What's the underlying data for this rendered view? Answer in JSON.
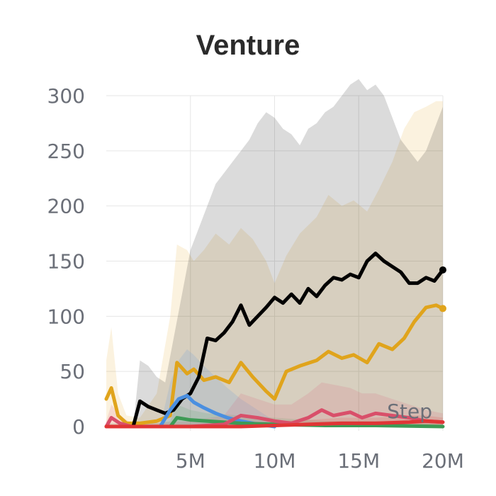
{
  "chart_data": {
    "type": "line",
    "title": "Venture",
    "xlabel": "Step",
    "ylabel": "",
    "xlim": [
      0,
      20000000
    ],
    "ylim": [
      0,
      300
    ],
    "x_ticks": [
      5000000,
      10000000,
      15000000,
      20000000
    ],
    "x_tick_labels": [
      "5M",
      "10M",
      "15M",
      "20M"
    ],
    "y_ticks": [
      0,
      50,
      100,
      150,
      200,
      250,
      300
    ],
    "y_tick_labels": [
      "0",
      "50",
      "100",
      "150",
      "200",
      "250",
      "300"
    ],
    "grid": true,
    "series": [
      {
        "color": "#e0a41c",
        "end_marker": true,
        "x": [
          0,
          300000,
          700000,
          1200000,
          2000000,
          3000000,
          3800000,
          4200000,
          4800000,
          5200000,
          5800000,
          6500000,
          7300000,
          8000000,
          8700000,
          9500000,
          10000000,
          10700000,
          11500000,
          12500000,
          13200000,
          14000000,
          14700000,
          15500000,
          16200000,
          17000000,
          17700000,
          18300000,
          19000000,
          19600000,
          20000000
        ],
        "values": [
          25,
          35,
          10,
          3,
          3,
          5,
          10,
          58,
          48,
          52,
          42,
          45,
          40,
          58,
          45,
          32,
          25,
          50,
          55,
          60,
          68,
          62,
          65,
          58,
          75,
          70,
          80,
          95,
          108,
          110,
          107
        ],
        "band_upper": [
          60,
          90,
          30,
          10,
          8,
          30,
          100,
          165,
          160,
          150,
          160,
          175,
          165,
          180,
          170,
          150,
          130,
          155,
          175,
          190,
          210,
          200,
          205,
          195,
          215,
          240,
          270,
          285,
          290,
          295,
          295
        ],
        "band_lower": [
          0,
          0,
          0,
          0,
          0,
          0,
          0,
          0,
          0,
          0,
          0,
          0,
          0,
          0,
          0,
          0,
          0,
          0,
          0,
          0,
          0,
          0,
          0,
          0,
          0,
          0,
          0,
          0,
          0,
          0,
          0
        ]
      },
      {
        "color": "#000000",
        "end_marker": true,
        "x": [
          1600000,
          2000000,
          2500000,
          3000000,
          3500000,
          4000000,
          4500000,
          5000000,
          5500000,
          6000000,
          6500000,
          7000000,
          7500000,
          8000000,
          8500000,
          9000000,
          9500000,
          10000000,
          10500000,
          11000000,
          11500000,
          12000000,
          12500000,
          13000000,
          13500000,
          14000000,
          14500000,
          15000000,
          15500000,
          16000000,
          16500000,
          17000000,
          17500000,
          18000000,
          18500000,
          19000000,
          19500000,
          20000000
        ],
        "values": [
          0,
          23,
          18,
          15,
          12,
          15,
          25,
          30,
          45,
          80,
          78,
          85,
          95,
          110,
          92,
          100,
          108,
          117,
          112,
          120,
          112,
          125,
          118,
          128,
          135,
          133,
          138,
          135,
          150,
          157,
          150,
          145,
          140,
          130,
          130,
          135,
          132,
          142
        ],
        "band_upper": [
          0,
          60,
          55,
          45,
          40,
          80,
          120,
          160,
          180,
          200,
          220,
          230,
          240,
          250,
          260,
          275,
          285,
          280,
          270,
          265,
          255,
          270,
          275,
          285,
          290,
          300,
          310,
          315,
          305,
          310,
          300,
          280,
          260,
          250,
          240,
          250,
          270,
          290
        ],
        "band_lower": [
          0,
          0,
          0,
          0,
          0,
          0,
          0,
          0,
          0,
          0,
          0,
          0,
          0,
          0,
          0,
          0,
          0,
          0,
          0,
          0,
          0,
          0,
          0,
          0,
          0,
          0,
          0,
          0,
          0,
          0,
          0,
          0,
          0,
          0,
          0,
          0,
          0,
          0
        ]
      },
      {
        "color": "#4a8fe0",
        "end_marker": false,
        "x": [
          3200000,
          3800000,
          4300000,
          4800000,
          5200000,
          5800000,
          6500000,
          7200000,
          8000000,
          9000000,
          10000000
        ],
        "values": [
          0,
          15,
          25,
          28,
          22,
          17,
          12,
          8,
          5,
          2,
          0
        ],
        "band_upper": [
          0,
          40,
          60,
          70,
          65,
          55,
          45,
          35,
          25,
          15,
          5
        ],
        "band_lower": [
          0,
          0,
          0,
          0,
          0,
          0,
          0,
          0,
          0,
          0,
          0
        ]
      },
      {
        "color": "#3d9a55",
        "end_marker": false,
        "x": [
          0,
          1500000,
          3000000,
          3800000,
          4200000,
          5000000,
          6000000,
          8000000,
          10000000,
          13000000,
          16000000,
          20000000
        ],
        "values": [
          0,
          0,
          0,
          0,
          8,
          6,
          5,
          3,
          2,
          1,
          1,
          0
        ],
        "band_upper": [
          3,
          3,
          3,
          5,
          20,
          15,
          12,
          10,
          8,
          5,
          5,
          3
        ],
        "band_lower": [
          0,
          0,
          0,
          0,
          0,
          0,
          0,
          0,
          0,
          0,
          0,
          0
        ]
      },
      {
        "color": "#d94f6a",
        "end_marker": false,
        "x": [
          0,
          300000,
          800000,
          1500000,
          3000000,
          5000000,
          7000000,
          8000000,
          9000000,
          10000000,
          11000000,
          12000000,
          12800000,
          13500000,
          14500000,
          15200000,
          16000000,
          17000000,
          18000000,
          19000000,
          20000000
        ],
        "values": [
          0,
          8,
          3,
          0,
          0,
          0,
          2,
          10,
          8,
          5,
          3,
          8,
          15,
          10,
          13,
          8,
          12,
          10,
          8,
          5,
          4
        ],
        "band_upper": [
          5,
          20,
          10,
          3,
          3,
          5,
          10,
          30,
          25,
          20,
          20,
          30,
          40,
          38,
          35,
          30,
          30,
          25,
          20,
          15,
          12
        ],
        "band_lower": [
          0,
          0,
          0,
          0,
          0,
          0,
          0,
          0,
          0,
          0,
          0,
          0,
          0,
          0,
          0,
          0,
          0,
          0,
          0,
          0,
          0
        ]
      },
      {
        "color": "#e03535",
        "end_marker": false,
        "x": [
          0,
          4000000,
          8000000,
          10000000,
          12000000,
          14000000,
          16000000,
          18000000,
          19000000,
          20000000
        ],
        "values": [
          0,
          0,
          0,
          1,
          2,
          3,
          3,
          4,
          5,
          4
        ],
        "band_upper": [
          2,
          2,
          3,
          5,
          6,
          8,
          8,
          10,
          10,
          8
        ],
        "band_lower": [
          0,
          0,
          0,
          0,
          0,
          0,
          0,
          0,
          0,
          0
        ]
      }
    ]
  }
}
